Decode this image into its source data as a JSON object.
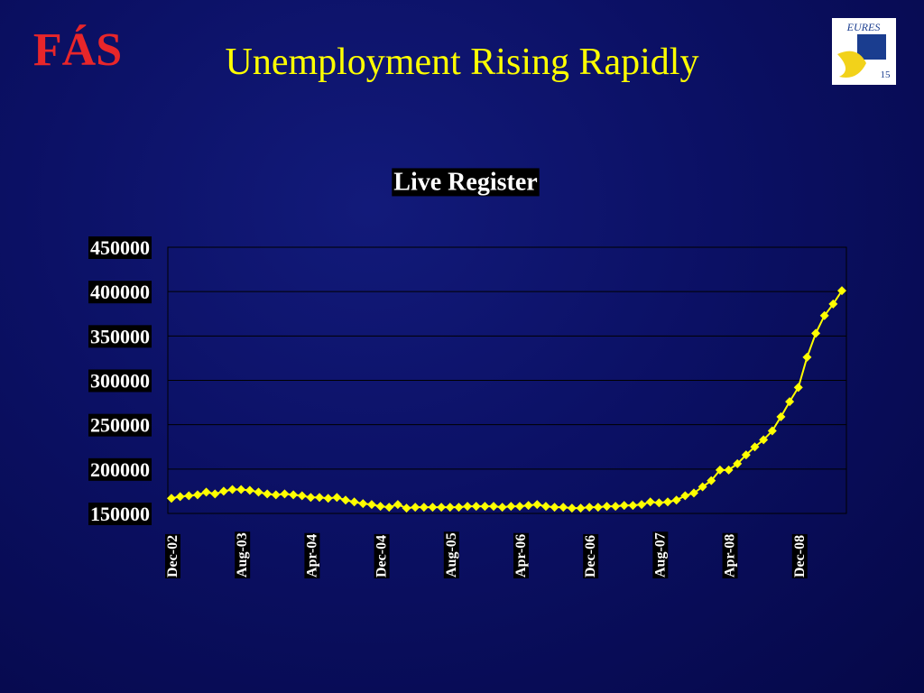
{
  "slide_title": "Unemployment Rising Rapidly",
  "logo_left": "FÁS",
  "logo_right": {
    "name": "EURES",
    "badge": "15"
  },
  "chart_data": {
    "type": "line",
    "title": "Live Register",
    "categories": [
      "Dec-02",
      null,
      null,
      null,
      null,
      null,
      null,
      null,
      "Aug-03",
      null,
      null,
      null,
      null,
      null,
      null,
      null,
      "Apr-04",
      null,
      null,
      null,
      null,
      null,
      null,
      null,
      "Dec-04",
      null,
      null,
      null,
      null,
      null,
      null,
      null,
      "Aug-05",
      null,
      null,
      null,
      null,
      null,
      null,
      null,
      "Apr-06",
      null,
      null,
      null,
      null,
      null,
      null,
      null,
      "Dec-06",
      null,
      null,
      null,
      null,
      null,
      null,
      null,
      "Aug-07",
      null,
      null,
      null,
      null,
      null,
      null,
      null,
      "Apr-08",
      null,
      null,
      null,
      null,
      null,
      null,
      null,
      "Dec-08",
      null,
      null,
      null,
      null,
      null
    ],
    "values": [
      167000,
      169000,
      170000,
      171000,
      174000,
      172000,
      175000,
      177000,
      177000,
      176000,
      174000,
      172000,
      171000,
      172000,
      171000,
      170000,
      168000,
      168000,
      167000,
      168000,
      165000,
      163000,
      161000,
      160000,
      158000,
      157000,
      160000,
      156000,
      157000,
      157000,
      157000,
      157000,
      157000,
      157000,
      158000,
      158000,
      158000,
      158000,
      157000,
      158000,
      158000,
      159000,
      160000,
      158000,
      157000,
      157000,
      156000,
      156000,
      157000,
      157000,
      158000,
      158000,
      159000,
      159000,
      160000,
      163000,
      162000,
      163000,
      165000,
      170000,
      173000,
      180000,
      187000,
      199000,
      199000,
      206000,
      216000,
      225000,
      233000,
      243000,
      259000,
      276000,
      292000,
      326000,
      353000,
      373000,
      386000,
      401000
    ],
    "color": "#ffff00",
    "ylim": [
      150000,
      450000
    ],
    "yticks": [
      150000,
      200000,
      250000,
      300000,
      350000,
      400000,
      450000
    ],
    "grid": true
  }
}
